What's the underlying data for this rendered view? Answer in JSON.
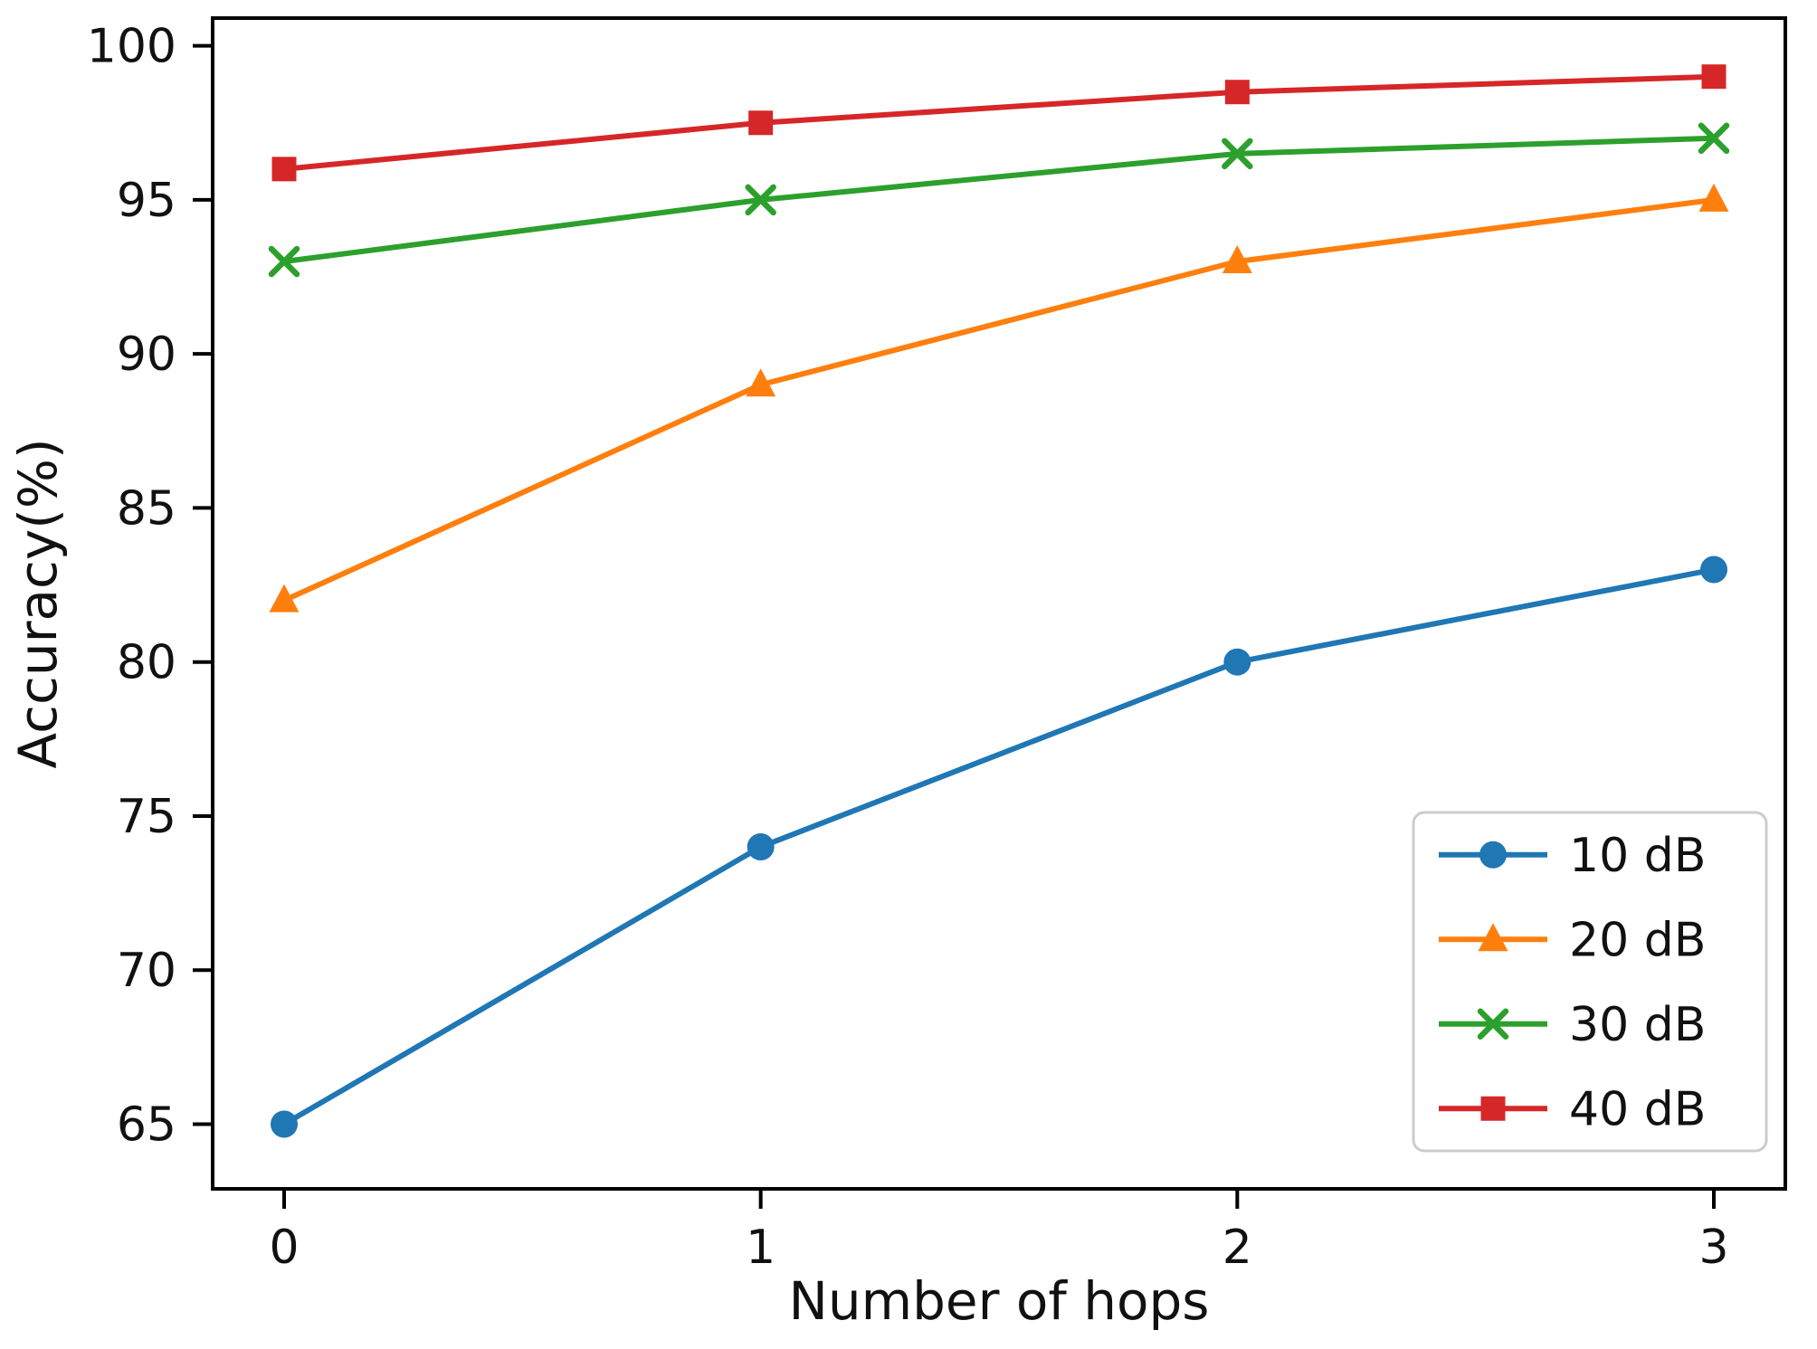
{
  "figure": {
    "background": "#ffffff",
    "axis_color": "#000000",
    "text_color": "#111111",
    "legend_border_color": "#cccccc"
  },
  "chart_data": {
    "type": "line",
    "title": "",
    "xlabel": "Number of hops",
    "ylabel": "Accuracy(%)",
    "x": [
      0,
      1,
      2,
      3
    ],
    "xtick_labels": [
      "0",
      "1",
      "2",
      "3"
    ],
    "yticks": [
      65,
      70,
      75,
      80,
      85,
      90,
      95,
      100
    ],
    "xlim": [
      -0.15,
      3.15
    ],
    "ylim": [
      62.9,
      100.9
    ],
    "grid": false,
    "legend_position": "lower right",
    "series": [
      {
        "name": "10 dB",
        "marker": "circle",
        "color": "#1f77b4",
        "values": [
          65,
          74,
          80,
          83
        ]
      },
      {
        "name": "20 dB",
        "marker": "triangle",
        "color": "#ff7f0e",
        "values": [
          82,
          89,
          93,
          95
        ]
      },
      {
        "name": "30 dB",
        "marker": "x",
        "color": "#2ca02c",
        "values": [
          93,
          95,
          96.5,
          97
        ]
      },
      {
        "name": "40 dB",
        "marker": "square",
        "color": "#d62728",
        "values": [
          96,
          97.5,
          98.5,
          99
        ]
      }
    ]
  }
}
